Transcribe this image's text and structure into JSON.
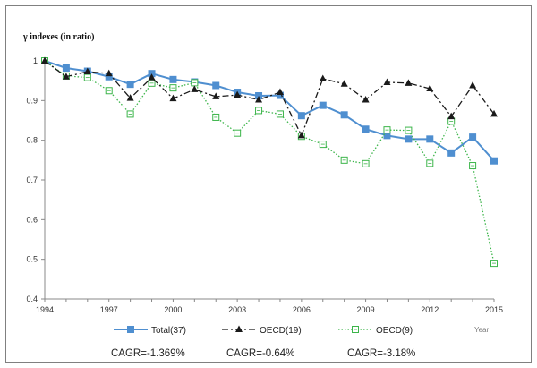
{
  "chart_data": {
    "type": "line",
    "ylabel": "γ indexes (in ratio)",
    "xlabel": "Year",
    "ylim": [
      0.4,
      1.0
    ],
    "yticks": [
      "0.4",
      "0.5",
      "0.6",
      "0.7",
      "0.8",
      "0.9",
      "1"
    ],
    "xlim": [
      1994,
      2015
    ],
    "xticks": [
      "1994",
      "1997",
      "2000",
      "2003",
      "2006",
      "2009",
      "2012",
      "2015"
    ],
    "x": [
      1994,
      1995,
      1996,
      1997,
      1998,
      1999,
      2000,
      2001,
      2002,
      2003,
      2004,
      2005,
      2006,
      2007,
      2008,
      2009,
      2010,
      2011,
      2012,
      2013,
      2014,
      2015
    ],
    "series": [
      {
        "name": "Total(37)",
        "color": "#4f8fd0",
        "style": "solid",
        "marker": "square-filled",
        "values": [
          1.0,
          0.982,
          0.974,
          0.96,
          0.941,
          0.968,
          0.953,
          0.947,
          0.938,
          0.921,
          0.912,
          0.913,
          0.862,
          0.888,
          0.864,
          0.828,
          0.812,
          0.803,
          0.803,
          0.768,
          0.808,
          0.748
        ]
      },
      {
        "name": "OECD(19)",
        "color": "#1a1a1a",
        "style": "dashdot",
        "marker": "triangle-filled",
        "values": [
          1.0,
          0.96,
          0.973,
          0.968,
          0.906,
          0.958,
          0.905,
          0.928,
          0.91,
          0.914,
          0.902,
          0.921,
          0.812,
          0.955,
          0.942,
          0.902,
          0.946,
          0.944,
          0.93,
          0.86,
          0.938,
          0.866
        ]
      },
      {
        "name": "OECD(9)",
        "color": "#3cb54a",
        "style": "dotted",
        "marker": "square-open",
        "values": [
          1.0,
          0.962,
          0.958,
          0.925,
          0.866,
          0.944,
          0.932,
          0.945,
          0.858,
          0.818,
          0.875,
          0.866,
          0.81,
          0.79,
          0.75,
          0.741,
          0.826,
          0.825,
          0.742,
          0.848,
          0.736,
          0.49
        ]
      }
    ],
    "annotations": [
      "CAGR=-1.369%",
      "CAGR=-0.64%",
      "CAGR=-3.18%"
    ],
    "legend_position": "bottom",
    "grid": false
  }
}
